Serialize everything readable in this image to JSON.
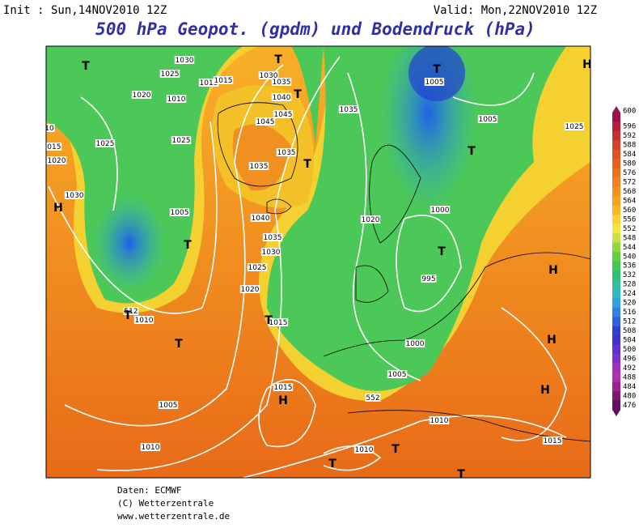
{
  "header": {
    "init": "Init : Sun,14NOV2010 12Z",
    "valid": "Valid: Mon,22NOV2010 12Z",
    "title": "500 hPa Geopot. (gpdm) und Bodendruck (hPa)"
  },
  "map": {
    "labels": [
      "1030",
      "1025",
      "1015",
      "1015",
      "1020",
      "1010",
      "1025",
      "1025",
      "1020",
      "1015",
      "10",
      "1030",
      "1005",
      "1040",
      "1035",
      "1030",
      "1025",
      "1020",
      "512",
      "1010",
      "1015",
      "1005",
      "1010",
      "1015",
      "1030",
      "1035",
      "1040",
      "1045",
      "1045",
      "1035",
      "1035",
      "1035",
      "1005",
      "1005",
      "1025",
      "1020",
      "1000",
      "995",
      "1000",
      "1005",
      "1010",
      "1015",
      "1010",
      "552",
      "T",
      "T",
      "T",
      "T",
      "T",
      "T",
      "T",
      "T",
      "T",
      "T",
      "T",
      "T",
      "T",
      "T",
      "H",
      "H",
      "H",
      "H",
      "H",
      "H"
    ]
  },
  "colorbar": {
    "levels": [
      600,
      596,
      592,
      588,
      584,
      580,
      576,
      572,
      568,
      564,
      560,
      556,
      552,
      548,
      544,
      540,
      536,
      532,
      528,
      524,
      520,
      516,
      512,
      508,
      504,
      500,
      496,
      492,
      488,
      484,
      480,
      476
    ],
    "colors": [
      "#a0104a",
      "#b8203c",
      "#c83030",
      "#d84028",
      "#e05020",
      "#e86020",
      "#ec7020",
      "#f08020",
      "#f49020",
      "#f8a020",
      "#fcb428",
      "#fcd030",
      "#f0e840",
      "#c8e040",
      "#90d840",
      "#60d040",
      "#40c850",
      "#30c070",
      "#30c0a0",
      "#30b8c8",
      "#30a0e0",
      "#3080e8",
      "#3060e0",
      "#3040d8",
      "#4030d0",
      "#6030d0",
      "#8030c8",
      "#a030c0",
      "#b030b0",
      "#a02090",
      "#801870",
      "#601060"
    ]
  },
  "footer": {
    "source": "Daten: ECMWF",
    "copyright": "(C) Wetterzentrale",
    "url": "www.wetterzentrale.de"
  }
}
